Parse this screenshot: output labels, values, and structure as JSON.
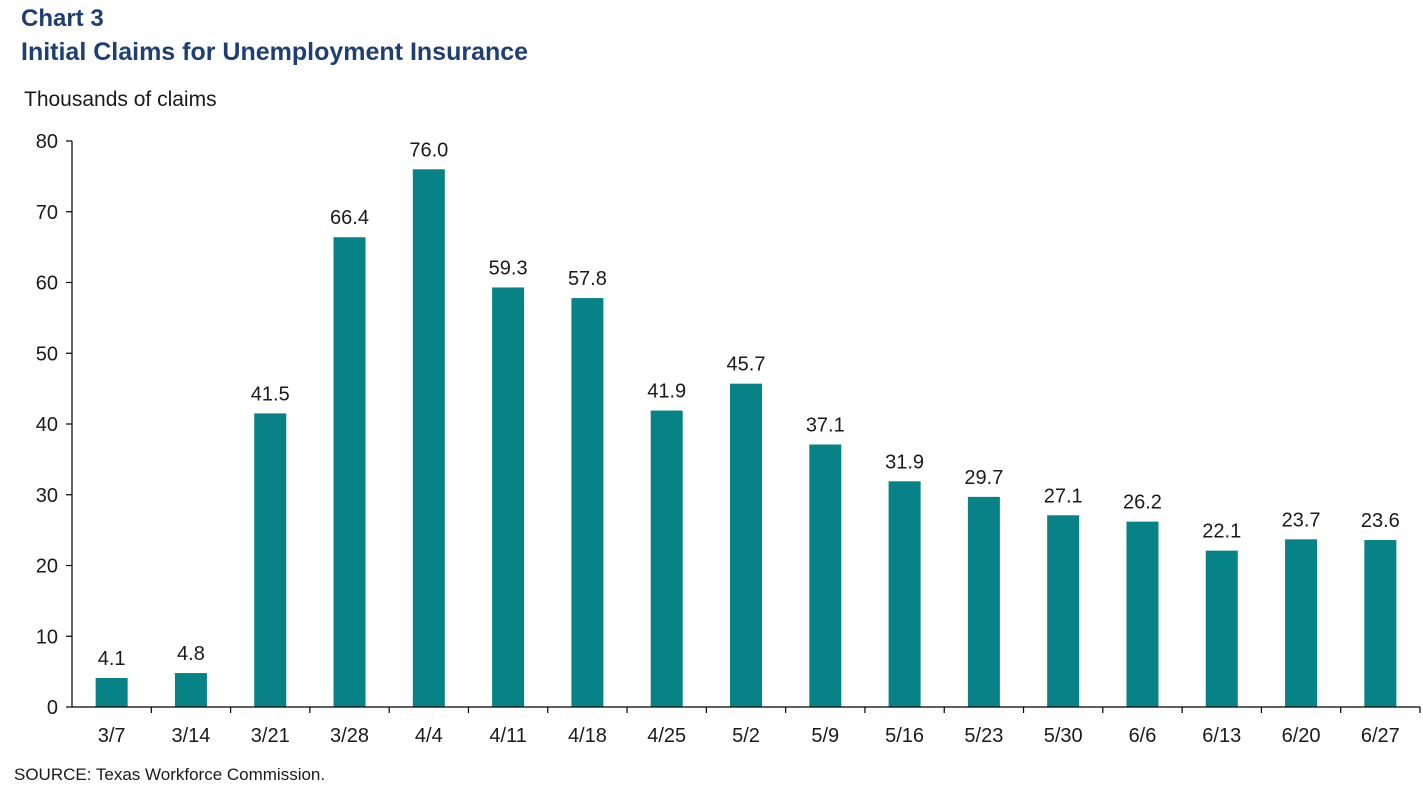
{
  "header": {
    "chart_label": "Chart 3",
    "title": "Initial Claims for Unemployment Insurance"
  },
  "source_note": "SOURCE:  Texas Workforce Commission.",
  "chart_data": {
    "type": "bar",
    "title": "Initial Claims for Unemployment Insurance",
    "xlabel": "",
    "ylabel": "Thousands of claims",
    "ylim": [
      0,
      80
    ],
    "yticks": [
      0,
      10,
      20,
      30,
      40,
      50,
      60,
      70,
      80
    ],
    "grid": false,
    "bar_color": "#078387",
    "categories": [
      "3/7",
      "3/14",
      "3/21",
      "3/28",
      "4/4",
      "4/11",
      "4/18",
      "4/25",
      "5/2",
      "5/9",
      "5/16",
      "5/23",
      "5/30",
      "6/6",
      "6/13",
      "6/20",
      "6/27"
    ],
    "values": [
      4.1,
      4.8,
      41.5,
      66.4,
      76.0,
      59.3,
      57.8,
      41.9,
      45.7,
      37.1,
      31.9,
      29.7,
      27.1,
      26.2,
      22.1,
      23.7,
      23.6
    ],
    "data_labels": [
      "4.1",
      "4.8",
      "41.5",
      "66.4",
      "76.0",
      "59.3",
      "57.8",
      "41.9",
      "45.7",
      "37.1",
      "31.9",
      "29.7",
      "27.1",
      "26.2",
      "22.1",
      "23.7",
      "23.6"
    ]
  }
}
